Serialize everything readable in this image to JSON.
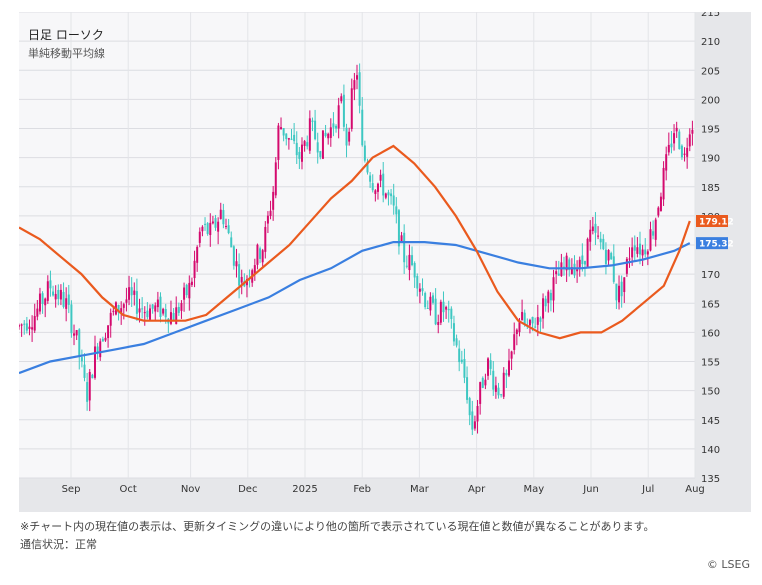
{
  "header": {
    "title": "日足 ローソク",
    "subtitle": "単純移動平均線"
  },
  "footer": {
    "note": "※チャート内の現在値の表示は、更新タイミングの違いにより他の箇所で表示されている現在値と数値が異なることがあります。",
    "status": "通信状況：正常",
    "copyright": "© LSEG"
  },
  "colors": {
    "up": "#d40a6e",
    "down": "#3ec7c2",
    "ma_short": "#ea5a1e",
    "ma_long": "#3a7fe0",
    "plot_bg": "#f7f7f9",
    "frame_bg": "#e6e7ea"
  },
  "chart_data": {
    "type": "candlestick",
    "y_ticks": [
      "135",
      "140",
      "145",
      "150",
      "155",
      "160",
      "165",
      "170",
      "175",
      "180",
      "185",
      "190",
      "195",
      "200",
      "205",
      "210",
      "215"
    ],
    "ylim": [
      135,
      215
    ],
    "x_ticks": [
      "Sep",
      "Oct",
      "Nov",
      "Dec",
      "2025",
      "Feb",
      "Mar",
      "Apr",
      "May",
      "Jun",
      "Jul",
      "Aug"
    ],
    "price_path": [
      {
        "t": 0,
        "v": 161
      },
      {
        "t": 3,
        "v": 163
      },
      {
        "t": 6,
        "v": 168
      },
      {
        "t": 9,
        "v": 165
      },
      {
        "t": 11,
        "v": 159
      },
      {
        "t": 13,
        "v": 149
      },
      {
        "t": 15,
        "v": 158
      },
      {
        "t": 18,
        "v": 163
      },
      {
        "t": 21,
        "v": 166
      },
      {
        "t": 24,
        "v": 164
      },
      {
        "t": 27,
        "v": 164
      },
      {
        "t": 30,
        "v": 163
      },
      {
        "t": 33,
        "v": 168
      },
      {
        "t": 35,
        "v": 178
      },
      {
        "t": 37,
        "v": 177
      },
      {
        "t": 39,
        "v": 181
      },
      {
        "t": 41,
        "v": 174
      },
      {
        "t": 43,
        "v": 168
      },
      {
        "t": 45,
        "v": 172
      },
      {
        "t": 47,
        "v": 175
      },
      {
        "t": 49,
        "v": 185
      },
      {
        "t": 50,
        "v": 196
      },
      {
        "t": 52,
        "v": 193
      },
      {
        "t": 54,
        "v": 190
      },
      {
        "t": 56,
        "v": 195
      },
      {
        "t": 58,
        "v": 192
      },
      {
        "t": 60,
        "v": 195
      },
      {
        "t": 62,
        "v": 199
      },
      {
        "t": 63,
        "v": 193
      },
      {
        "t": 64,
        "v": 200
      },
      {
        "t": 65,
        "v": 205
      },
      {
        "t": 66,
        "v": 191
      },
      {
        "t": 68,
        "v": 186
      },
      {
        "t": 70,
        "v": 185
      },
      {
        "t": 72,
        "v": 181
      },
      {
        "t": 74,
        "v": 173
      },
      {
        "t": 76,
        "v": 171
      },
      {
        "t": 78,
        "v": 166
      },
      {
        "t": 80,
        "v": 163
      },
      {
        "t": 82,
        "v": 164
      },
      {
        "t": 84,
        "v": 158
      },
      {
        "t": 86,
        "v": 151
      },
      {
        "t": 87,
        "v": 143
      },
      {
        "t": 88,
        "v": 147
      },
      {
        "t": 90,
        "v": 155
      },
      {
        "t": 92,
        "v": 150
      },
      {
        "t": 94,
        "v": 152
      },
      {
        "t": 96,
        "v": 163
      },
      {
        "t": 98,
        "v": 160
      },
      {
        "t": 100,
        "v": 163
      },
      {
        "t": 102,
        "v": 167
      },
      {
        "t": 104,
        "v": 170
      },
      {
        "t": 106,
        "v": 172
      },
      {
        "t": 108,
        "v": 171
      },
      {
        "t": 110,
        "v": 177
      },
      {
        "t": 112,
        "v": 175
      },
      {
        "t": 114,
        "v": 172
      },
      {
        "t": 115,
        "v": 166
      },
      {
        "t": 116,
        "v": 168
      },
      {
        "t": 118,
        "v": 176
      },
      {
        "t": 120,
        "v": 174
      },
      {
        "t": 122,
        "v": 178
      },
      {
        "t": 124,
        "v": 187
      },
      {
        "t": 126,
        "v": 195
      },
      {
        "t": 127,
        "v": 193
      },
      {
        "t": 128,
        "v": 190
      },
      {
        "t": 129,
        "v": 196
      }
    ],
    "ma_short": [
      {
        "t": 0,
        "v": 178
      },
      {
        "t": 4,
        "v": 176
      },
      {
        "t": 8,
        "v": 173
      },
      {
        "t": 12,
        "v": 170
      },
      {
        "t": 16,
        "v": 166
      },
      {
        "t": 20,
        "v": 163
      },
      {
        "t": 24,
        "v": 162
      },
      {
        "t": 28,
        "v": 162
      },
      {
        "t": 32,
        "v": 162
      },
      {
        "t": 36,
        "v": 163
      },
      {
        "t": 40,
        "v": 166
      },
      {
        "t": 44,
        "v": 169
      },
      {
        "t": 48,
        "v": 172
      },
      {
        "t": 52,
        "v": 175
      },
      {
        "t": 56,
        "v": 179
      },
      {
        "t": 60,
        "v": 183
      },
      {
        "t": 64,
        "v": 186
      },
      {
        "t": 68,
        "v": 190
      },
      {
        "t": 72,
        "v": 192
      },
      {
        "t": 76,
        "v": 189
      },
      {
        "t": 80,
        "v": 185
      },
      {
        "t": 84,
        "v": 180
      },
      {
        "t": 88,
        "v": 174
      },
      {
        "t": 92,
        "v": 167
      },
      {
        "t": 96,
        "v": 162
      },
      {
        "t": 100,
        "v": 160
      },
      {
        "t": 104,
        "v": 159
      },
      {
        "t": 108,
        "v": 160
      },
      {
        "t": 112,
        "v": 160
      },
      {
        "t": 116,
        "v": 162
      },
      {
        "t": 120,
        "v": 165
      },
      {
        "t": 124,
        "v": 168
      },
      {
        "t": 127,
        "v": 174
      },
      {
        "t": 129,
        "v": 179.12
      }
    ],
    "ma_long": [
      {
        "t": 0,
        "v": 153
      },
      {
        "t": 6,
        "v": 155
      },
      {
        "t": 12,
        "v": 156
      },
      {
        "t": 18,
        "v": 157
      },
      {
        "t": 24,
        "v": 158
      },
      {
        "t": 30,
        "v": 160
      },
      {
        "t": 36,
        "v": 162
      },
      {
        "t": 42,
        "v": 164
      },
      {
        "t": 48,
        "v": 166
      },
      {
        "t": 54,
        "v": 169
      },
      {
        "t": 60,
        "v": 171
      },
      {
        "t": 66,
        "v": 174
      },
      {
        "t": 72,
        "v": 175.5
      },
      {
        "t": 78,
        "v": 175.5
      },
      {
        "t": 84,
        "v": 175
      },
      {
        "t": 90,
        "v": 173.5
      },
      {
        "t": 96,
        "v": 172
      },
      {
        "t": 102,
        "v": 171
      },
      {
        "t": 108,
        "v": 171
      },
      {
        "t": 114,
        "v": 171.5
      },
      {
        "t": 120,
        "v": 172.5
      },
      {
        "t": 126,
        "v": 174
      },
      {
        "t": 129,
        "v": 175.32
      }
    ],
    "month_ticks_t": [
      10,
      21,
      33,
      44,
      55,
      66,
      77,
      88,
      99,
      110,
      121,
      130
    ],
    "last_ma_short": "179.12",
    "last_ma_long": "175.32"
  }
}
